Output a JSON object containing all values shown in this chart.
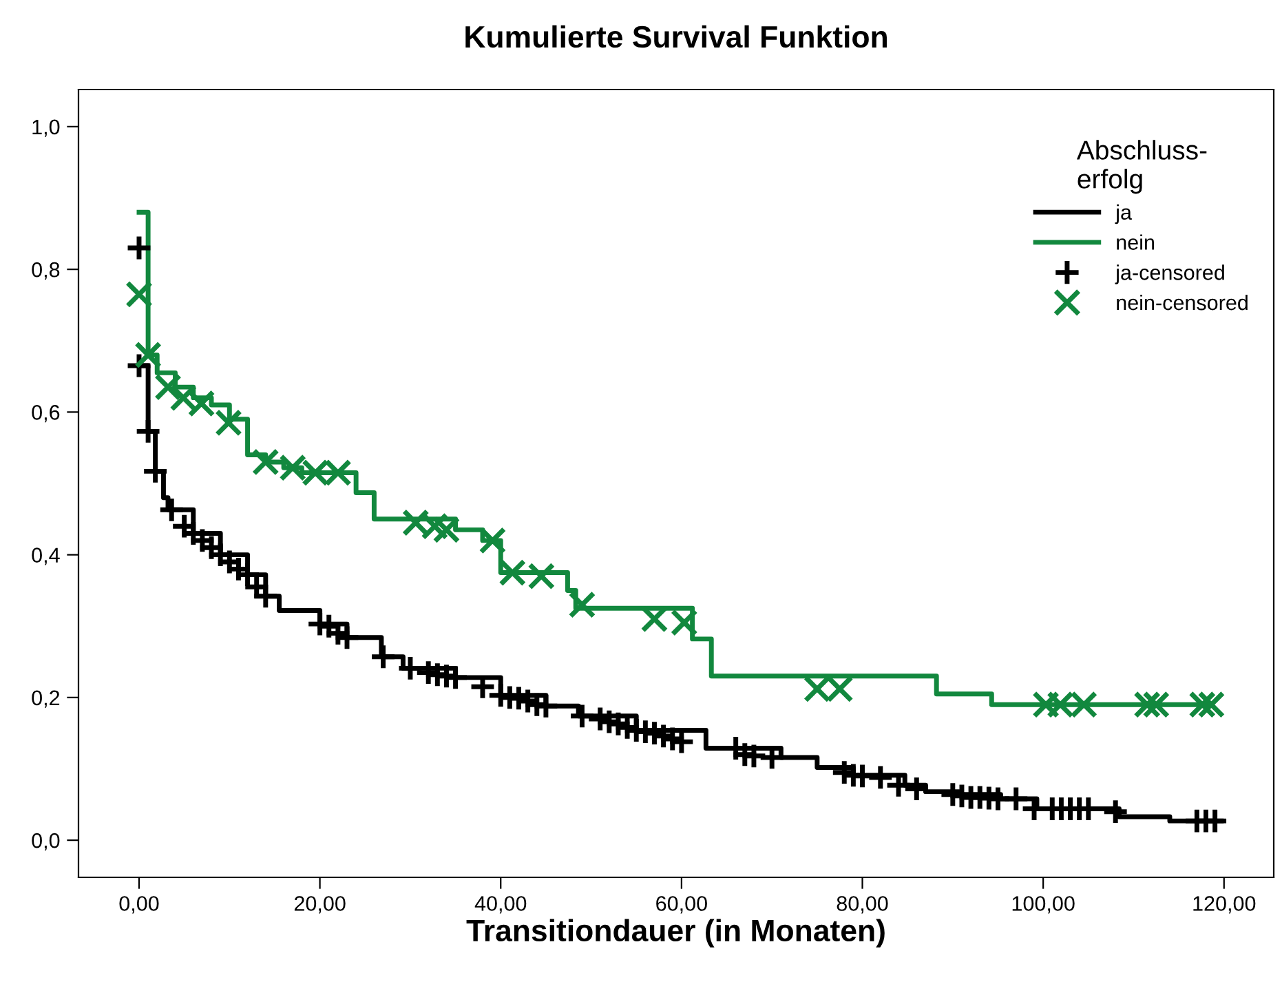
{
  "chart_data": {
    "type": "step",
    "title": "Kumulierte Survival Funktion",
    "xlabel": "Transitiondauer (in Monaten)",
    "legend_title": "Abschluss-\nerfolg",
    "legend": "top right",
    "grid": false,
    "xlim": [
      -6.7,
      125.5
    ],
    "ylim": [
      -0.052,
      1.052
    ],
    "xticks": [
      {
        "value": 0,
        "label": "0,00"
      },
      {
        "value": 20,
        "label": "20,00"
      },
      {
        "value": 40,
        "label": "40,00"
      },
      {
        "value": 60,
        "label": "60,00"
      },
      {
        "value": 80,
        "label": "80,00"
      },
      {
        "value": 100,
        "label": "100,00"
      },
      {
        "value": 120,
        "label": "120,00"
      }
    ],
    "yticks": [
      {
        "value": 0,
        "label": "0,0"
      },
      {
        "value": 0.2,
        "label": "0,2"
      },
      {
        "value": 0.4,
        "label": "0,4"
      },
      {
        "value": 0.6,
        "label": "0,6"
      },
      {
        "value": 0.8,
        "label": "0,8"
      },
      {
        "value": 1.0,
        "label": "1,0"
      }
    ],
    "series": [
      {
        "name": "ja",
        "color": "#000000",
        "marker": "none",
        "x": [
          0,
          1,
          1.8,
          2.7,
          3.2,
          6,
          9,
          12,
          14,
          15.5,
          20,
          23,
          26.8,
          29.2,
          35,
          40,
          45,
          48.6,
          55,
          62.7,
          71,
          75,
          79,
          84.7,
          87,
          90.7,
          95.3,
          99.3,
          108.4,
          114,
          119.7
        ],
        "values": [
          0.665,
          0.573,
          0.517,
          0.48,
          0.463,
          0.43,
          0.4,
          0.372,
          0.342,
          0.322,
          0.303,
          0.284,
          0.257,
          0.241,
          0.228,
          0.203,
          0.188,
          0.174,
          0.154,
          0.129,
          0.116,
          0.102,
          0.091,
          0.077,
          0.068,
          0.064,
          0.058,
          0.044,
          0.033,
          0.027,
          0.027
        ]
      },
      {
        "name": "nein",
        "color": "#12883e",
        "marker": "none",
        "x": [
          0,
          1,
          2,
          4,
          6,
          8,
          10,
          12,
          14,
          16,
          18,
          24,
          26,
          35,
          38,
          40,
          47.4,
          48.3,
          61.2,
          63.3,
          88.2,
          94.3,
          118.6
        ],
        "values": [
          0.88,
          0.68,
          0.655,
          0.635,
          0.62,
          0.61,
          0.59,
          0.54,
          0.53,
          0.522,
          0.515,
          0.487,
          0.45,
          0.435,
          0.42,
          0.375,
          0.35,
          0.325,
          0.282,
          0.23,
          0.205,
          0.19,
          0.19
        ]
      },
      {
        "name": "ja-censored",
        "type": "scatter",
        "color": "#000000",
        "marker": "plus",
        "x": [
          0,
          0,
          1,
          1.8,
          3.6,
          5,
          6,
          7,
          8,
          9,
          10,
          11,
          12,
          13,
          14,
          20,
          21,
          22,
          23,
          27,
          30,
          32,
          33,
          34,
          35,
          38,
          40,
          41,
          42,
          43,
          44,
          45,
          49,
          51,
          52,
          53,
          54,
          55,
          56,
          57,
          58,
          59,
          60,
          66,
          67,
          68,
          70,
          78,
          79,
          80,
          82,
          84,
          86,
          90,
          91,
          92,
          93,
          94,
          95,
          97,
          99,
          101,
          102,
          103,
          104,
          105,
          108,
          117,
          118,
          119
        ],
        "values": [
          0.83,
          0.665,
          0.573,
          0.517,
          0.463,
          0.44,
          0.43,
          0.42,
          0.41,
          0.4,
          0.39,
          0.38,
          0.372,
          0.355,
          0.342,
          0.303,
          0.3,
          0.29,
          0.284,
          0.257,
          0.241,
          0.235,
          0.232,
          0.23,
          0.228,
          0.215,
          0.203,
          0.2,
          0.199,
          0.195,
          0.19,
          0.188,
          0.174,
          0.17,
          0.166,
          0.163,
          0.158,
          0.154,
          0.152,
          0.15,
          0.146,
          0.142,
          0.138,
          0.129,
          0.12,
          0.118,
          0.116,
          0.095,
          0.091,
          0.09,
          0.088,
          0.077,
          0.072,
          0.064,
          0.062,
          0.06,
          0.06,
          0.059,
          0.058,
          0.058,
          0.044,
          0.044,
          0.044,
          0.044,
          0.044,
          0.044,
          0.04,
          0.027,
          0.027,
          0.027
        ]
      },
      {
        "name": "nein-censored",
        "type": "scatter",
        "color": "#12883e",
        "marker": "cross",
        "x": [
          0,
          1,
          3.2,
          4.9,
          6.9,
          9.9,
          14,
          17,
          19.5,
          22,
          30.6,
          32.7,
          34,
          39.1,
          41.3,
          44.5,
          49,
          57,
          60.3,
          75,
          77.5,
          100.3,
          101.9,
          104.5,
          111.5,
          112.5,
          117.6,
          118.6
        ],
        "values": [
          0.765,
          0.68,
          0.635,
          0.62,
          0.612,
          0.585,
          0.53,
          0.522,
          0.515,
          0.515,
          0.445,
          0.44,
          0.435,
          0.42,
          0.375,
          0.37,
          0.33,
          0.31,
          0.305,
          0.212,
          0.212,
          0.19,
          0.19,
          0.19,
          0.19,
          0.19,
          0.19,
          0.19
        ]
      }
    ]
  }
}
